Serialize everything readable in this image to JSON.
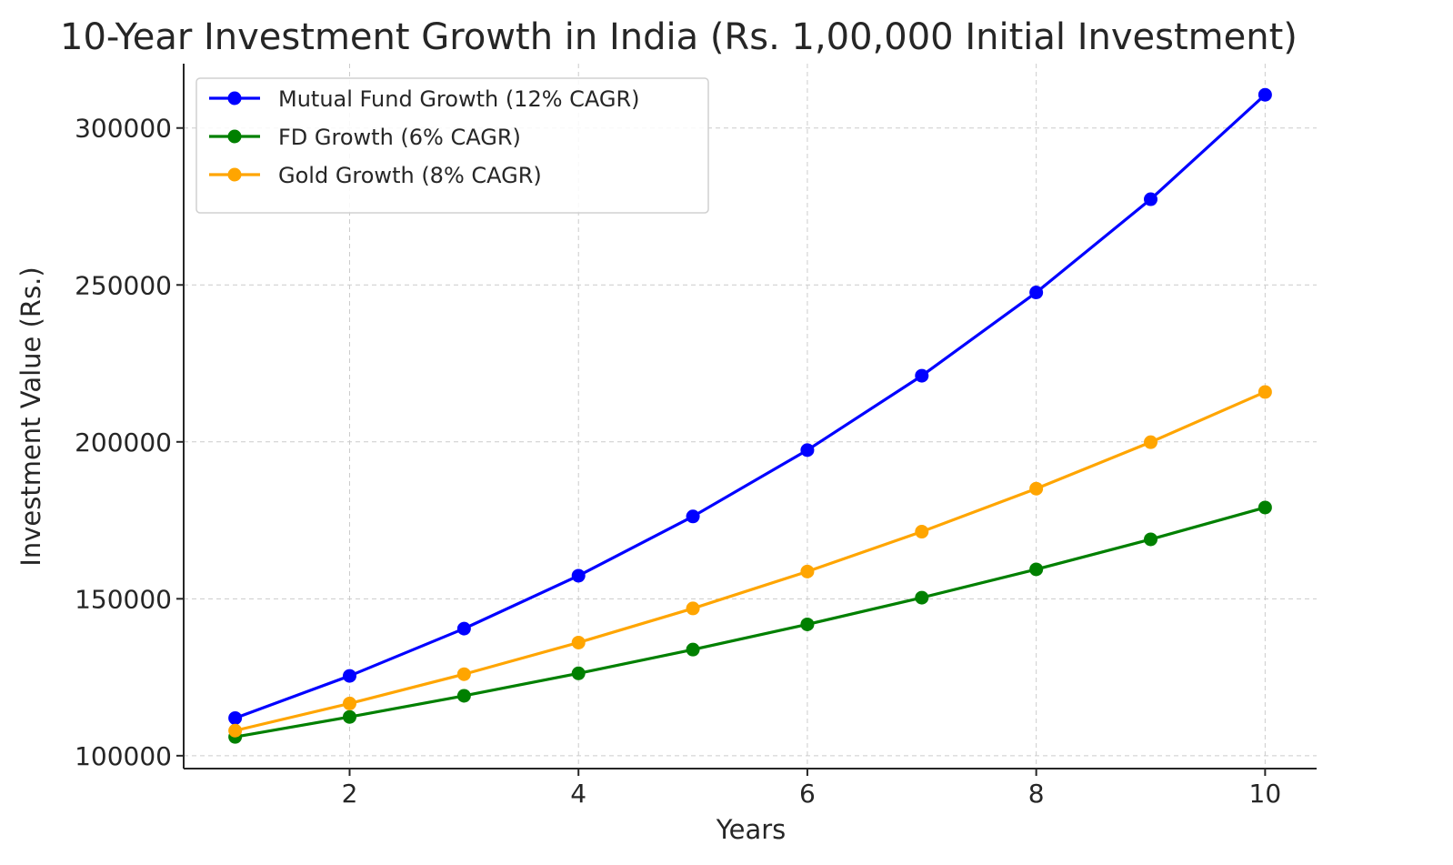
{
  "chart_data": {
    "type": "line",
    "title": "10-Year Investment Growth in India (Rs. 1,00,000 Initial Investment)",
    "xlabel": "Years",
    "ylabel": "Investment Value (Rs.)",
    "x": [
      1,
      2,
      3,
      4,
      5,
      6,
      7,
      8,
      9,
      10
    ],
    "xticks": [
      2,
      4,
      6,
      8,
      10
    ],
    "yticks": [
      100000,
      150000,
      200000,
      250000,
      300000
    ],
    "xlim": [
      0.55,
      10.45
    ],
    "ylim": [
      95900,
      320500
    ],
    "grid": true,
    "legend_position": "upper-left",
    "series": [
      {
        "name": "Mutual Fund Growth (12% CAGR)",
        "color": "#0000ff",
        "values": [
          112000,
          125440,
          140493,
          157352,
          176234,
          197382,
          221068,
          247596,
          277308,
          310585
        ]
      },
      {
        "name": "FD Growth (6% CAGR)",
        "color": "#008000",
        "values": [
          106000,
          112360,
          119102,
          126248,
          133823,
          141852,
          150363,
          159385,
          168948,
          179085
        ]
      },
      {
        "name": "Gold Growth (8% CAGR)",
        "color": "#ffa500",
        "values": [
          108000,
          116640,
          125971,
          136049,
          146933,
          158687,
          171382,
          185093,
          199900,
          215892
        ]
      }
    ]
  }
}
